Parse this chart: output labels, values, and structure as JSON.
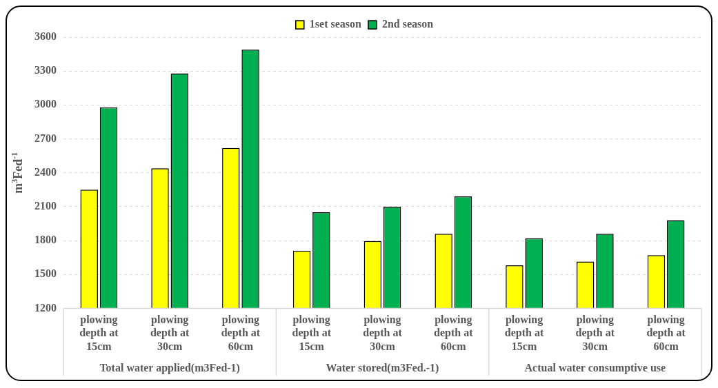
{
  "chart_data": {
    "type": "bar",
    "categories": [
      "plowing depth at 15cm",
      "plowing depth at 30cm",
      "plowing depth at 60cm",
      "plowing depth at 15cm",
      "plowing depth at 30cm",
      "plowing depth at 60cm",
      "plowing depth at 15cm",
      "plowing depth at 30cm",
      "plowing depth at 60cm"
    ],
    "series": [
      {
        "name": "1set season",
        "color": "#ffff00",
        "values": [
          2250,
          2440,
          2620,
          1710,
          1795,
          1860,
          1580,
          1615,
          1670
        ]
      },
      {
        "name": "2nd season",
        "color": "#00b050",
        "values": [
          2980,
          3280,
          3490,
          2050,
          2100,
          2190,
          1820,
          1860,
          1980
        ]
      }
    ],
    "ylabel": "m$^{3}$Fed$^{-1}$",
    "ylim": [
      1200,
      3600
    ],
    "yticks": [
      1200,
      1500,
      1800,
      2100,
      2400,
      2700,
      3000,
      3300,
      3600
    ],
    "annotations": [
      "Total water applied(m3Fed-1)",
      "Water stored(m3Fed.-1)",
      "Actual water consumptive use"
    ],
    "grid": "y",
    "legend": "top"
  }
}
